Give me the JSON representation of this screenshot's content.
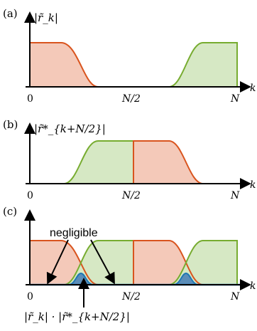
{
  "colors": {
    "red_edge": "#d9541e",
    "red_fill": "#f4c9b9",
    "green_edge": "#77ac30",
    "green_fill": "#d6e8c4",
    "blue_edge": "#1f77b4",
    "blue_fill": "#5b8db8",
    "axis": "#000000"
  },
  "panel_a": {
    "tag": "(a)",
    "ylabel": "|r̃_k|",
    "xtick_0": "0",
    "xtick_mid": "N/2",
    "xtick_end": "N",
    "xlabel": "k"
  },
  "panel_b": {
    "tag": "(b)",
    "ylabel": "|r̃*_{k+N/2}|",
    "xtick_0": "0",
    "xtick_mid": "N/2",
    "xtick_end": "N",
    "xlabel": "k"
  },
  "panel_c": {
    "tag": "(c)",
    "annotation": "negligible",
    "product_label": "|r̃_k| · |r̃*_{k+N/2}|",
    "xtick_0": "0",
    "xtick_mid": "N/2",
    "xtick_end": "N",
    "xlabel": "k"
  }
}
